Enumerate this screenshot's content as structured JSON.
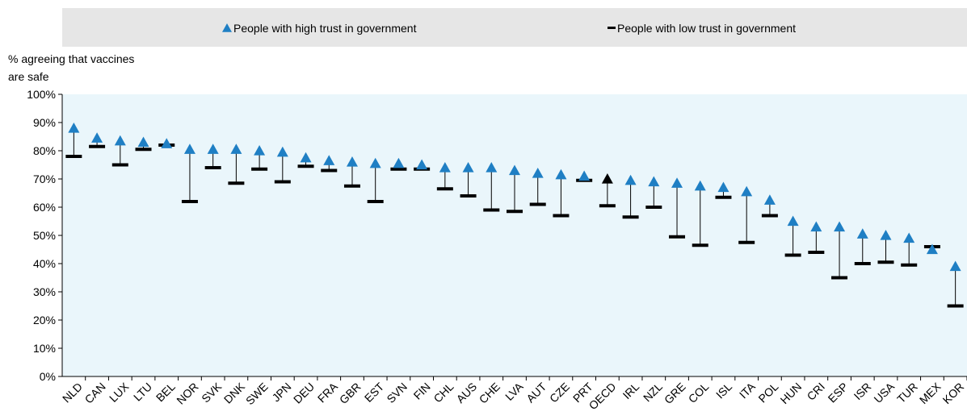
{
  "chart_data": {
    "type": "dot-range",
    "y_label_lines": [
      "% agreeing that vaccines",
      "are safe"
    ],
    "categories": [
      "NLD",
      "CAN",
      "LUX",
      "LTU",
      "BEL",
      "NOR",
      "SVK",
      "DNK",
      "SWE",
      "JPN",
      "DEU",
      "FRA",
      "GBR",
      "EST",
      "SVN",
      "FIN",
      "CHL",
      "AUS",
      "CHE",
      "LVA",
      "AUT",
      "CZE",
      "PRT",
      "OECD",
      "IRL",
      "NZL",
      "GRE",
      "COL",
      "ISL",
      "ITA",
      "POL",
      "HUN",
      "CRI",
      "ESP",
      "ISR",
      "USA",
      "TUR",
      "MEX",
      "KOR"
    ],
    "series": [
      {
        "name": "People with high trust in government",
        "color": "#1f7fc4",
        "marker": "triangle",
        "values": [
          88,
          84.5,
          83.5,
          83,
          82.5,
          80.5,
          80.5,
          80.5,
          80,
          79.5,
          77.5,
          76.5,
          76,
          75.5,
          75.5,
          75,
          74,
          74,
          74,
          73,
          72,
          71.5,
          71,
          70,
          69.5,
          69,
          68.5,
          67.5,
          67,
          65.5,
          62.5,
          55,
          53,
          53,
          50.5,
          50,
          49,
          45,
          39
        ]
      },
      {
        "name": "People with low trust in government",
        "color": "#000000",
        "marker": "dash",
        "values": [
          78,
          81.5,
          75,
          80.5,
          82,
          62,
          74,
          68.5,
          73.5,
          69,
          74.5,
          73,
          67.5,
          62,
          73.5,
          73.5,
          66.5,
          64,
          59,
          58.5,
          61,
          57,
          69.5,
          60.5,
          56.5,
          60,
          49.5,
          46.5,
          63.5,
          47.5,
          57,
          43,
          44,
          35,
          40,
          40.5,
          39.5,
          46,
          25
        ]
      }
    ],
    "highlight_index": 23,
    "highlight_color": "#000000",
    "ylim": [
      0,
      100
    ],
    "yticks": [
      {
        "value": 0,
        "label": "0%"
      },
      {
        "value": 10,
        "label": "10%"
      },
      {
        "value": 20,
        "label": "20%"
      },
      {
        "value": 30,
        "label": "30%"
      },
      {
        "value": 40,
        "label": "40%"
      },
      {
        "value": 50,
        "label": "50%"
      },
      {
        "value": 60,
        "label": "60%"
      },
      {
        "value": 70,
        "label": "70%"
      },
      {
        "value": 80,
        "label": "80%"
      },
      {
        "value": 90,
        "label": "90%"
      },
      {
        "value": 100,
        "label": "100%"
      }
    ]
  }
}
